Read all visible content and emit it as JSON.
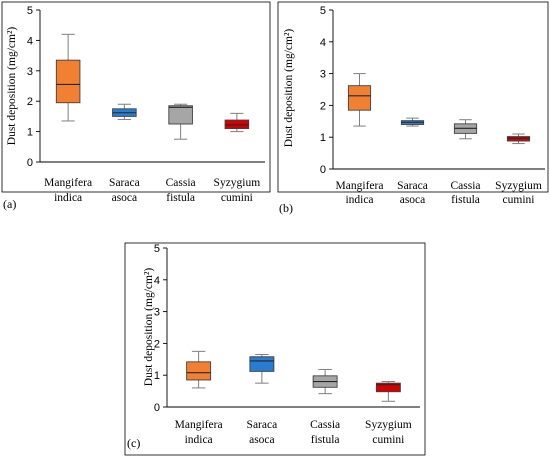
{
  "chart_data": [
    {
      "type": "box",
      "panel_label": "(a)",
      "ylabel": "Dust deposition (mg/cm²)",
      "ylim": [
        0,
        5
      ],
      "yticks": [
        "0",
        "1",
        "2",
        "3",
        "4",
        "5"
      ],
      "grid": false,
      "categories": [
        {
          "line1": "Mangifera",
          "line2": "indica",
          "color": "#f28032",
          "min": 1.35,
          "q1": 1.95,
          "median": 2.55,
          "q3": 3.35,
          "max": 4.2
        },
        {
          "line1": "Saraca",
          "line2": "asoca",
          "color": "#2a7bd2",
          "min": 1.4,
          "q1": 1.5,
          "median": 1.62,
          "q3": 1.75,
          "max": 1.9
        },
        {
          "line1": "Cassia",
          "line2": "fistula",
          "color": "#a6a6a6",
          "min": 0.75,
          "q1": 1.25,
          "median": 1.8,
          "q3": 1.85,
          "max": 1.9
        },
        {
          "line1": "Syzygium",
          "line2": "cumini",
          "color": "#d40000",
          "min": 1.0,
          "q1": 1.1,
          "median": 1.22,
          "q3": 1.38,
          "max": 1.6
        }
      ]
    },
    {
      "type": "box",
      "panel_label": "(b)",
      "ylabel": "Dust deposition (mg/cm²)",
      "ylim": [
        0,
        5
      ],
      "yticks": [
        "0",
        "1",
        "2",
        "3",
        "4",
        "5"
      ],
      "grid": false,
      "categories": [
        {
          "line1": "Mangifera",
          "line2": "indica",
          "color": "#f28032",
          "min": 1.35,
          "q1": 1.85,
          "median": 2.3,
          "q3": 2.62,
          "max": 3.0
        },
        {
          "line1": "Saraca",
          "line2": "asoca",
          "color": "#2a7bd2",
          "min": 1.35,
          "q1": 1.4,
          "median": 1.47,
          "q3": 1.52,
          "max": 1.6
        },
        {
          "line1": "Cassia",
          "line2": "fistula",
          "color": "#a6a6a6",
          "min": 0.95,
          "q1": 1.12,
          "median": 1.28,
          "q3": 1.42,
          "max": 1.55
        },
        {
          "line1": "Syzygium",
          "line2": "cumini",
          "color": "#d40000",
          "min": 0.8,
          "q1": 0.88,
          "median": 0.97,
          "q3": 1.02,
          "max": 1.1
        }
      ]
    },
    {
      "type": "box",
      "panel_label": "(c)",
      "ylabel": "Dust deposition (mg/cm²)",
      "ylim": [
        0,
        5
      ],
      "yticks": [
        "0",
        "1",
        "2",
        "3",
        "4",
        "5"
      ],
      "grid": false,
      "categories": [
        {
          "line1": "Mangifera",
          "line2": "indica",
          "color": "#f28032",
          "min": 0.6,
          "q1": 0.85,
          "median": 1.08,
          "q3": 1.42,
          "max": 1.75
        },
        {
          "line1": "Saraca",
          "line2": "asoca",
          "color": "#2a7bd2",
          "min": 0.75,
          "q1": 1.12,
          "median": 1.45,
          "q3": 1.58,
          "max": 1.65
        },
        {
          "line1": "Cassia",
          "line2": "fistula",
          "color": "#a6a6a6",
          "min": 0.42,
          "q1": 0.62,
          "median": 0.8,
          "q3": 0.98,
          "max": 1.18
        },
        {
          "line1": "Syzygium",
          "line2": "cumini",
          "color": "#d40000",
          "min": 0.18,
          "q1": 0.48,
          "median": 0.7,
          "q3": 0.75,
          "max": 0.8
        }
      ]
    }
  ]
}
